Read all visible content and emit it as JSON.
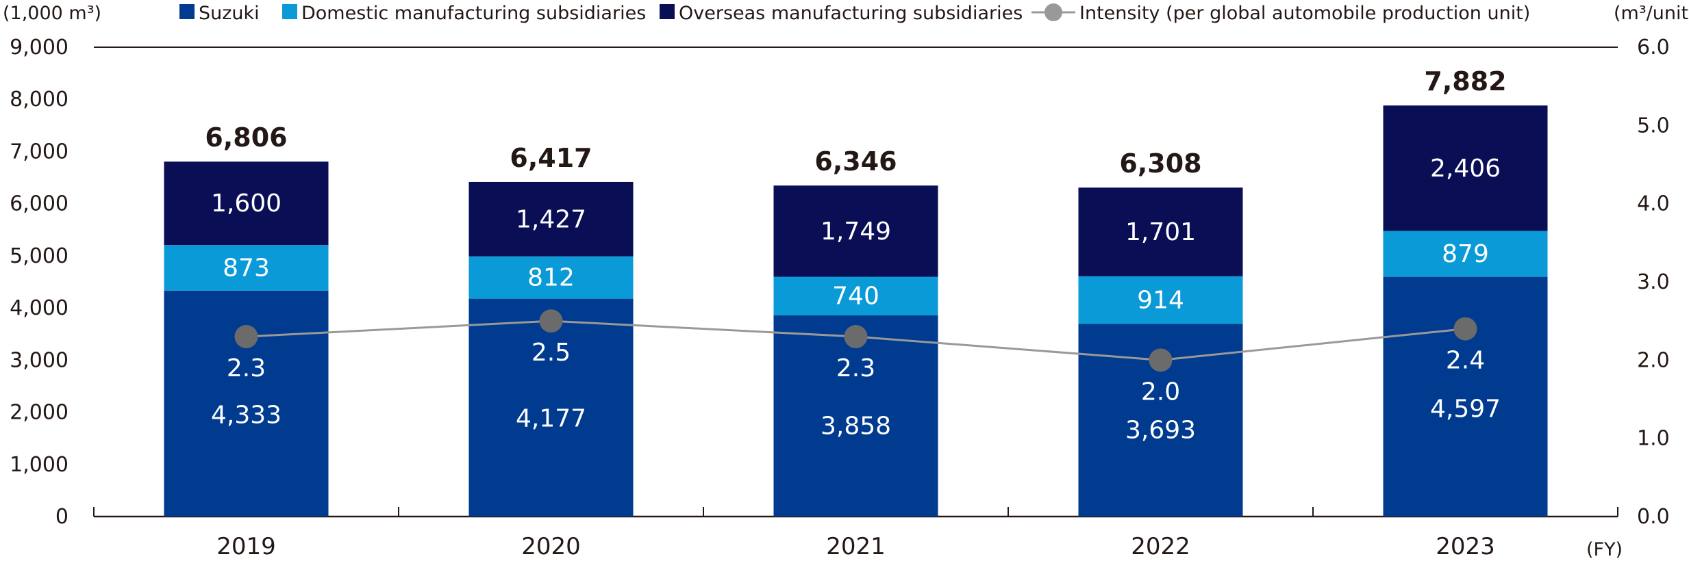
{
  "chart_data": {
    "type": "bar",
    "stacked": true,
    "categories": [
      "2019",
      "2020",
      "2021",
      "2022",
      "2023"
    ],
    "xlabel_unit": "(FY)",
    "y_left_label": "(1,000 m³)",
    "y_right_label": "(m³/unit)",
    "ylim_left": [
      0,
      9000
    ],
    "ylim_right": [
      0.0,
      6.0
    ],
    "yticks_left": [
      "0",
      "1,000",
      "2,000",
      "3,000",
      "4,000",
      "5,000",
      "6,000",
      "7,000",
      "8,000",
      "9,000"
    ],
    "yticks_right": [
      "0.0",
      "1.0",
      "2.0",
      "3.0",
      "4.0",
      "5.0",
      "6.0"
    ],
    "series": [
      {
        "name": "Suzuki",
        "color": "#003b8f",
        "values": [
          4333,
          4177,
          3858,
          3693,
          4597
        ],
        "labels": [
          "4,333",
          "4,177",
          "3,858",
          "3,693",
          "4,597"
        ]
      },
      {
        "name": "Domestic manufacturing subsidiaries",
        "color": "#0a9ad7",
        "values": [
          873,
          812,
          740,
          914,
          879
        ],
        "labels": [
          "873",
          "812",
          "740",
          "914",
          "879"
        ]
      },
      {
        "name": "Overseas manufacturing subsidiaries",
        "color": "#0a0f55",
        "values": [
          1600,
          1427,
          1749,
          1701,
          2406
        ],
        "labels": [
          "1,600",
          "1,427",
          "1,749",
          "1,701",
          "2,406"
        ]
      }
    ],
    "totals": [
      "6,806",
      "6,417",
      "6,346",
      "6,308",
      "7,882"
    ],
    "line": {
      "name": "Intensity (per global automobile production unit)",
      "axis": "right",
      "color": "#999999",
      "marker_color": "#6b6b6b",
      "values": [
        2.3,
        2.5,
        2.3,
        2.0,
        2.4
      ],
      "labels": [
        "2.3",
        "2.5",
        "2.3",
        "2.0",
        "2.4"
      ]
    },
    "legend_position": "top",
    "grid": false
  }
}
